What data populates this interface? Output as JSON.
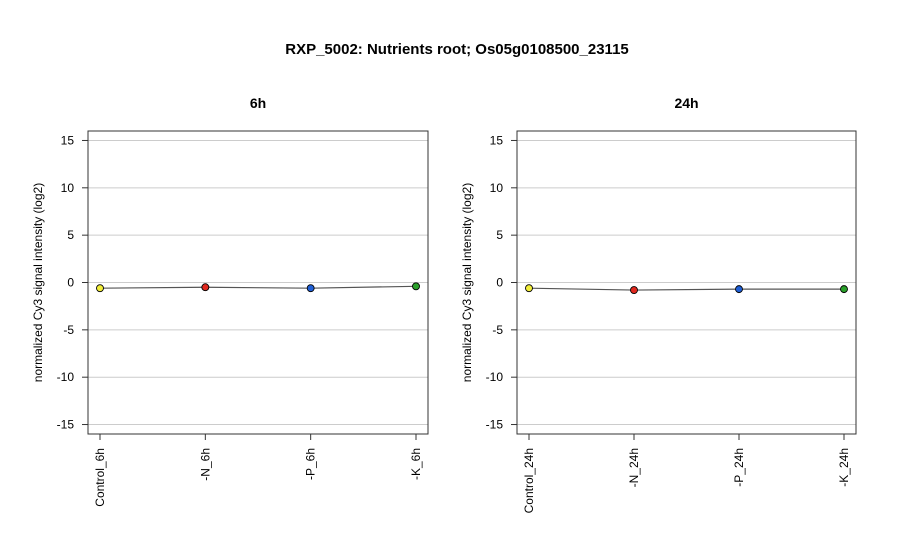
{
  "title": "RXP_5002: Nutrients root; Os05g0108500_23115",
  "chart_data": [
    {
      "type": "line",
      "title": "6h",
      "ylabel": "normalized Cy3 signal intensity (log2)",
      "categories": [
        "Control_6h",
        "-N_6h",
        "-P_6h",
        "-K_6h"
      ],
      "values": [
        -0.6,
        -0.5,
        -0.6,
        -0.4
      ],
      "point_colors": [
        "#f2ee3a",
        "#e0281e",
        "#1f5fd6",
        "#2aa02a"
      ],
      "ylim": [
        -16,
        16
      ],
      "yticks": [
        -15,
        -10,
        -5,
        0,
        5,
        10,
        15
      ],
      "grid": true
    },
    {
      "type": "line",
      "title": "24h",
      "ylabel": "normalized Cy3 signal intensity (log2)",
      "categories": [
        "Control_24h",
        "-N_24h",
        "-P_24h",
        "-K_24h"
      ],
      "values": [
        -0.6,
        -0.8,
        -0.7,
        -0.7
      ],
      "point_colors": [
        "#f2ee3a",
        "#e0281e",
        "#1f5fd6",
        "#2aa02a"
      ],
      "ylim": [
        -16,
        16
      ],
      "yticks": [
        -15,
        -10,
        -5,
        0,
        5,
        10,
        15
      ],
      "grid": true
    }
  ],
  "colors": {
    "line": "#555555",
    "grid": "#cccccc",
    "frame": "#333333"
  }
}
